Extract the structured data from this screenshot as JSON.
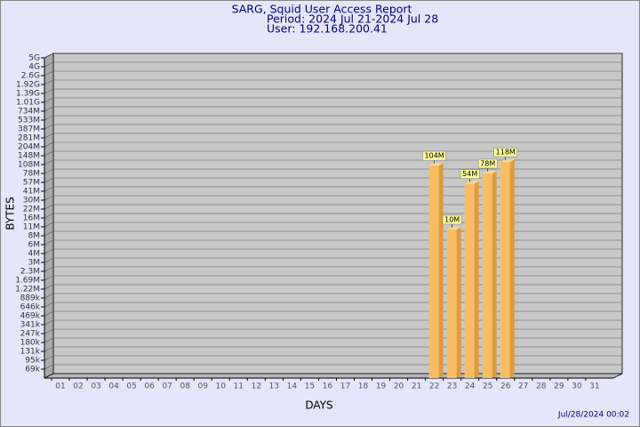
{
  "chart_data": {
    "type": "bar",
    "title": "SARG, Squid User Access Report",
    "subtitle": "Period: 2024 Jul 21-2024 Jul 28",
    "user": "User: 192.168.200.41",
    "xlabel": "DAYS",
    "ylabel": "BYTES",
    "footer": "Jul/28/2024 00:02",
    "color": "#f7bd63",
    "log_scale": true,
    "grid": true,
    "categories": [
      "01",
      "02",
      "03",
      "04",
      "05",
      "06",
      "07",
      "08",
      "09",
      "10",
      "11",
      "12",
      "13",
      "14",
      "15",
      "16",
      "17",
      "18",
      "19",
      "20",
      "21",
      "22",
      "23",
      "24",
      "25",
      "26",
      "27",
      "28",
      "29",
      "30",
      "31"
    ],
    "values": [
      null,
      null,
      null,
      null,
      null,
      null,
      null,
      null,
      null,
      null,
      null,
      null,
      null,
      null,
      null,
      null,
      null,
      null,
      null,
      null,
      null,
      104000000,
      10000000,
      54000000,
      78000000,
      118000000,
      null,
      null,
      null,
      null,
      null
    ],
    "value_labels": [
      null,
      null,
      null,
      null,
      null,
      null,
      null,
      null,
      null,
      null,
      null,
      null,
      null,
      null,
      null,
      null,
      null,
      null,
      null,
      null,
      null,
      "104M",
      "10M",
      "54M",
      "78M",
      "118M",
      null,
      null,
      null,
      null,
      null
    ],
    "ylim": [
      50000,
      5000000000
    ],
    "yticks": [
      {
        "value": 69000,
        "label": "69k"
      },
      {
        "value": 95000,
        "label": "95k"
      },
      {
        "value": 131000,
        "label": "131k"
      },
      {
        "value": 180000,
        "label": "180k"
      },
      {
        "value": 247000,
        "label": "247k"
      },
      {
        "value": 341000,
        "label": "341k"
      },
      {
        "value": 469000,
        "label": "469k"
      },
      {
        "value": 646000,
        "label": "646k"
      },
      {
        "value": 889000,
        "label": "889k"
      },
      {
        "value": 1220000,
        "label": "1.22M"
      },
      {
        "value": 1690000,
        "label": "1.69M"
      },
      {
        "value": 2300000,
        "label": "2.3M"
      },
      {
        "value": 3000000,
        "label": "3M"
      },
      {
        "value": 4000000,
        "label": "4M"
      },
      {
        "value": 6000000,
        "label": "6M"
      },
      {
        "value": 8000000,
        "label": "8M"
      },
      {
        "value": 11000000,
        "label": "11M"
      },
      {
        "value": 16000000,
        "label": "16M"
      },
      {
        "value": 22000000,
        "label": "22M"
      },
      {
        "value": 30000000,
        "label": "30M"
      },
      {
        "value": 41000000,
        "label": "41M"
      },
      {
        "value": 57000000,
        "label": "57M"
      },
      {
        "value": 78000000,
        "label": "78M"
      },
      {
        "value": 108000000,
        "label": "108M"
      },
      {
        "value": 148000000,
        "label": "148M"
      },
      {
        "value": 204000000,
        "label": "204M"
      },
      {
        "value": 281000000,
        "label": "281M"
      },
      {
        "value": 387000000,
        "label": "387M"
      },
      {
        "value": 533000000,
        "label": "533M"
      },
      {
        "value": 734000000,
        "label": "734M"
      },
      {
        "value": 1010000000,
        "label": "1.01G"
      },
      {
        "value": 1390000000,
        "label": "1.39G"
      },
      {
        "value": 1920000000,
        "label": "1.92G"
      },
      {
        "value": 2600000000,
        "label": "2.6G"
      },
      {
        "value": 4000000000,
        "label": "4G"
      },
      {
        "value": 5000000000,
        "label": "5G"
      }
    ]
  }
}
